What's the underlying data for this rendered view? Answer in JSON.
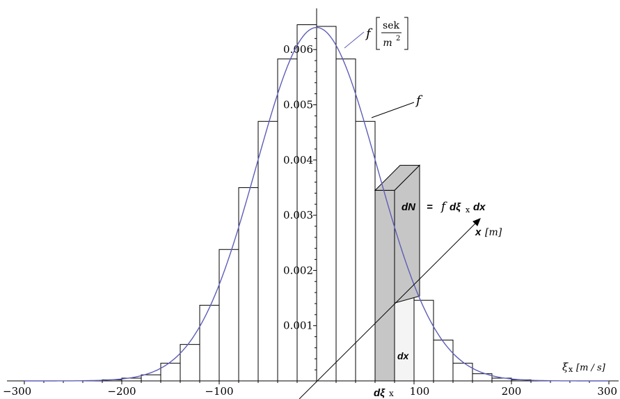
{
  "chart_data": {
    "type": "bar",
    "xlim": [
      -300,
      300
    ],
    "ylim": [
      0,
      0.0065
    ],
    "x_tick_labels": [
      "-300",
      "-200",
      "-100",
      "100",
      "200",
      "300"
    ],
    "x_tick_values": [
      -300,
      -200,
      -100,
      100,
      200,
      300
    ],
    "y_tick_labels": [
      "0.001",
      "0.002",
      "0.003",
      "0.004",
      "0.005",
      "0.006"
    ],
    "y_tick_values": [
      0.001,
      0.002,
      0.003,
      0.004,
      0.005,
      0.006
    ],
    "bin_width": 20,
    "bin_centers": [
      -210,
      -190,
      -170,
      -150,
      -130,
      -110,
      -90,
      -70,
      -50,
      -30,
      -10,
      10,
      30,
      50,
      70,
      90,
      110,
      130,
      150,
      170,
      190,
      210
    ],
    "values": [
      2e-05,
      5e-05,
      0.00011,
      0.00032,
      0.00066,
      0.00137,
      0.00238,
      0.0035,
      0.0047,
      0.00583,
      0.00645,
      0.00642,
      0.00583,
      0.0047,
      0.00345,
      0.00247,
      0.00146,
      0.00074,
      0.00032,
      0.00013,
      5e-05,
      2e-05
    ],
    "curve": {
      "label_f": "f",
      "label_unit_numerator": "sek",
      "label_unit_denominator": "m",
      "label_unit_exponent": "2",
      "color": "#5d5db8",
      "peak": 0.0064,
      "sigma": 62
    },
    "annotations": {
      "f_label": "f",
      "dN_label": "dN",
      "equals": "=",
      "f_in_formula": "f",
      "d_xi": "dξ",
      "x_sub": "x",
      "dx": "dx",
      "x_axis_label": "x",
      "x_axis_unit": "[m]",
      "xi_axis_label": "ξ",
      "xi_axis_sub": "x",
      "xi_axis_unit": "[m / s]",
      "dx_box": "dx",
      "d_xi_bottom": "dξ",
      "xi_sub_bottom": "x",
      "bottom_tick_100": "100"
    },
    "colors": {
      "bar_fill": "#ffffff",
      "bar_stroke": "#000000",
      "highlight_fill": "#c6c6c6",
      "light_bar_fill": "#f4f4f4"
    }
  }
}
